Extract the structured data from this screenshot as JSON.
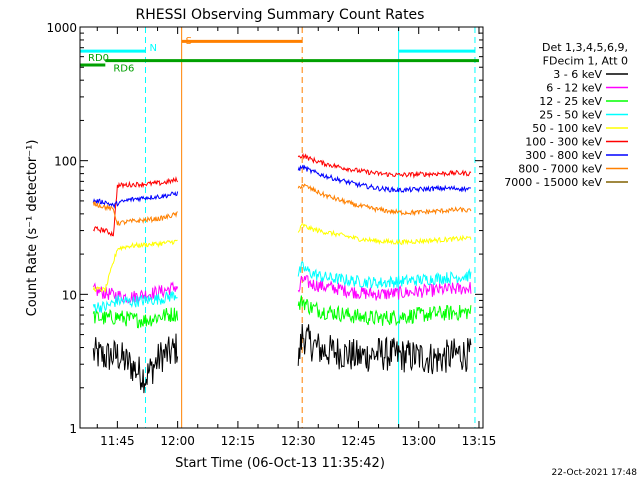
{
  "chart_data": {
    "type": "line",
    "title": "RHESSI Observing Summary Count Rates",
    "xlabel": "Start Time (06-Oct-13 11:35:42)",
    "ylabel": "Count Rate (s⁻¹ detector⁻¹)",
    "xlim": [
      "11:35:42",
      "13:16:00"
    ],
    "ylim": [
      1,
      1000
    ],
    "y_scale": "log",
    "x_ticks": [
      "11:45",
      "12:00",
      "12:15",
      "12:30",
      "12:45",
      "13:00",
      "13:15"
    ],
    "y_ticks": [
      "1",
      "10",
      "100",
      "1000"
    ],
    "timestamp": "22-Oct-2021 17:48",
    "legend_position": "right",
    "legend_header": [
      "Det 1,3,4,5,6,9,",
      "FDecim 1, Att 0"
    ],
    "series": [
      {
        "name": "3 - 6 keV",
        "color": "#000000",
        "segments": [
          {
            "t": [
              "11:39",
              "11:42",
              "11:45",
              "11:48",
              "11:52",
              "11:56",
              "11:58",
              "12:00"
            ],
            "v": [
              3.6,
              3.4,
              3.5,
              3.0,
              2.4,
              3.5,
              3.6,
              4.0
            ]
          },
          {
            "t": [
              "12:30",
              "12:31",
              "12:33",
              "12:36",
              "12:40",
              "12:45",
              "12:50",
              "12:55",
              "13:00",
              "13:05",
              "13:10",
              "13:13"
            ],
            "v": [
              3.0,
              5.0,
              4.3,
              3.8,
              3.7,
              3.4,
              3.6,
              3.5,
              3.4,
              3.3,
              3.6,
              3.5
            ]
          }
        ]
      },
      {
        "name": "6 - 12 keV",
        "color": "#ff00ff",
        "segments": [
          {
            "t": [
              "11:39",
              "11:42",
              "11:45",
              "11:48",
              "11:52",
              "11:56",
              "12:00"
            ],
            "v": [
              10.8,
              10.2,
              9.8,
              9.5,
              10.0,
              10.5,
              11.5
            ]
          },
          {
            "t": [
              "12:30",
              "12:31",
              "12:33",
              "12:36",
              "12:40",
              "12:45",
              "12:50",
              "12:55",
              "13:00",
              "13:05",
              "13:10",
              "13:13"
            ],
            "v": [
              10.0,
              13.0,
              12.0,
              11.5,
              11.0,
              10.3,
              10.0,
              10.2,
              10.5,
              10.8,
              11.0,
              11.2
            ]
          }
        ]
      },
      {
        "name": "12 - 25 keV",
        "color": "#00ff00",
        "segments": [
          {
            "t": [
              "11:39",
              "11:42",
              "11:45",
              "11:48",
              "11:52",
              "11:56",
              "12:00"
            ],
            "v": [
              6.8,
              6.6,
              6.8,
              6.5,
              6.4,
              6.9,
              7.2
            ]
          },
          {
            "t": [
              "12:30",
              "12:31",
              "12:33",
              "12:36",
              "12:40",
              "12:45",
              "12:50",
              "12:55",
              "13:00",
              "13:05",
              "13:10",
              "13:13"
            ],
            "v": [
              8.0,
              9.0,
              8.0,
              7.5,
              7.2,
              6.8,
              6.6,
              6.8,
              7.0,
              7.2,
              7.3,
              7.4
            ]
          }
        ]
      },
      {
        "name": "25 - 50 keV",
        "color": "#00ffff",
        "segments": [
          {
            "t": [
              "11:39",
              "11:42",
              "11:45",
              "11:48",
              "11:52",
              "11:56",
              "12:00"
            ],
            "v": [
              8.2,
              8.0,
              9.0,
              8.8,
              9.0,
              9.3,
              10.0
            ]
          },
          {
            "t": [
              "12:30",
              "12:31",
              "12:33",
              "12:36",
              "12:40",
              "12:45",
              "12:50",
              "12:55",
              "13:00",
              "13:05",
              "13:10",
              "13:13"
            ],
            "v": [
              14.0,
              16.0,
              14.5,
              13.5,
              13.0,
              12.5,
              12.2,
              12.5,
              12.8,
              13.2,
              13.5,
              13.8
            ]
          }
        ]
      },
      {
        "name": "50 - 100 keV",
        "color": "#ffff00",
        "segments": [
          {
            "t": [
              "11:39",
              "11:42",
              "11:45",
              "11:48",
              "11:52",
              "11:56",
              "12:00"
            ],
            "v": [
              11.0,
              10.8,
              22.0,
              23.0,
              23.5,
              24.0,
              25.0
            ]
          },
          {
            "t": [
              "12:30",
              "12:31",
              "12:33",
              "12:36",
              "12:40",
              "12:45",
              "12:50",
              "12:55",
              "13:00",
              "13:05",
              "13:10",
              "13:13"
            ],
            "v": [
              29.0,
              33.0,
              31.0,
              29.5,
              28.0,
              26.0,
              25.0,
              24.5,
              25.0,
              25.5,
              26.0,
              26.5
            ]
          }
        ]
      },
      {
        "name": "100 - 300 keV",
        "color": "#ff0000",
        "segments": [
          {
            "t": [
              "11:39",
              "11:42",
              "11:44",
              "11:45",
              "11:48",
              "11:52",
              "11:56",
              "12:00"
            ],
            "v": [
              31.0,
              30.0,
              28.0,
              65.0,
              66.0,
              67.0,
              68.0,
              72.0
            ]
          },
          {
            "t": [
              "12:30",
              "12:31",
              "12:33",
              "12:36",
              "12:40",
              "12:45",
              "12:50",
              "12:55",
              "13:00",
              "13:05",
              "13:10",
              "13:13"
            ],
            "v": [
              105.0,
              110.0,
              103.0,
              96.0,
              90.0,
              84.0,
              80.0,
              78.0,
              79.0,
              80.0,
              81.0,
              80.0
            ]
          }
        ]
      },
      {
        "name": "300 - 800 keV",
        "color": "#0000ff",
        "segments": [
          {
            "t": [
              "11:39",
              "11:42",
              "11:44",
              "11:45",
              "11:48",
              "11:52",
              "11:56",
              "12:00"
            ],
            "v": [
              50.0,
              49.0,
              46.0,
              48.0,
              51.0,
              53.0,
              54.0,
              57.0
            ]
          },
          {
            "t": [
              "12:30",
              "12:31",
              "12:33",
              "12:36",
              "12:40",
              "12:45",
              "12:50",
              "12:55",
              "13:00",
              "13:05",
              "13:10",
              "13:13"
            ],
            "v": [
              85.0,
              90.0,
              84.0,
              78.0,
              72.0,
              66.0,
              62.0,
              60.0,
              61.0,
              62.0,
              62.0,
              61.0
            ]
          }
        ]
      },
      {
        "name": "800 - 7000 keV",
        "color": "#ff8000",
        "segments": [
          {
            "t": [
              "11:39",
              "11:42",
              "11:44",
              "11:45",
              "11:48",
              "11:52",
              "11:56",
              "12:00"
            ],
            "v": [
              48.0,
              45.0,
              43.0,
              34.0,
              35.0,
              36.0,
              37.0,
              40.0
            ]
          },
          {
            "t": [
              "12:30",
              "12:31",
              "12:33",
              "12:36",
              "12:40",
              "12:45",
              "12:50",
              "12:55",
              "13:00",
              "13:05",
              "13:10",
              "13:13"
            ],
            "v": [
              62.0,
              66.0,
              62.0,
              56.0,
              51.0,
              46.0,
              43.0,
              41.0,
              41.0,
              42.0,
              43.0,
              42.0
            ]
          }
        ]
      },
      {
        "name": "7000 - 15000 keV",
        "color": "#806000",
        "segments": []
      }
    ],
    "state_bars": [
      {
        "label": "RD0",
        "color": "#00a000",
        "t": [
          "11:35:42",
          "11:42"
        ],
        "y": 520
      },
      {
        "label": "RD6",
        "color": "#00a000",
        "t": [
          "11:42",
          "13:15"
        ],
        "y": 560
      },
      {
        "label": "",
        "color": "#00ffff",
        "t": [
          "11:35:42",
          "11:52"
        ],
        "y": 660
      },
      {
        "label": "",
        "color": "#00ffff",
        "t": [
          "12:55",
          "13:14"
        ],
        "y": 660
      },
      {
        "label": "",
        "color": "#ff8000",
        "t": [
          "12:01",
          "12:31"
        ],
        "y": 780
      }
    ],
    "markers": [
      {
        "label": "N",
        "color": "#00ffff",
        "t": "11:52",
        "style": "dashed"
      },
      {
        "label": "S",
        "color": "#ff8000",
        "t": "12:01",
        "style": "solid"
      },
      {
        "label": "",
        "color": "#ff8000",
        "t": "12:31",
        "style": "dashed"
      },
      {
        "label": "",
        "color": "#00ffff",
        "t": "12:55",
        "style": "solid"
      },
      {
        "label": "",
        "color": "#00ffff",
        "t": "13:14",
        "style": "dashed"
      },
      {
        "label": "",
        "color": "#00ffff",
        "t": "11:35:42",
        "style": "solid"
      }
    ]
  }
}
